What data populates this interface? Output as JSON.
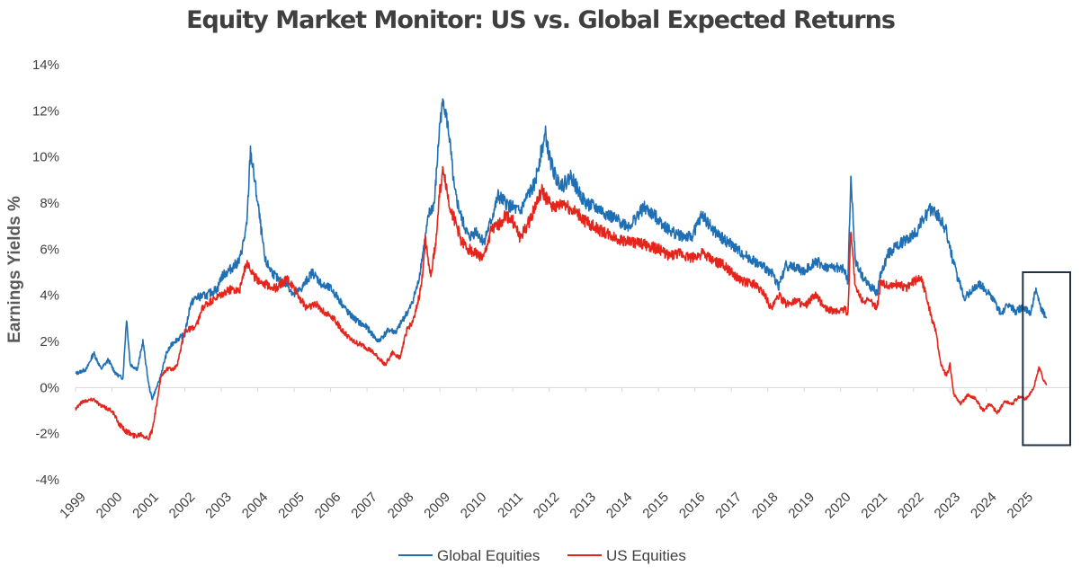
{
  "chart_data": {
    "type": "line",
    "title": "Equity Market Monitor: US vs. Global Expected Returns",
    "xlabel": "",
    "ylabel": "Earnings Yields %",
    "ylim": [
      -4,
      14
    ],
    "yticks": [
      -4,
      -2,
      0,
      2,
      4,
      6,
      8,
      10,
      12,
      14
    ],
    "ytick_labels": [
      "-4%",
      "-2%",
      "0%",
      "2%",
      "4%",
      "6%",
      "8%",
      "10%",
      "12%",
      "14%"
    ],
    "xlim": [
      1999,
      2026.3
    ],
    "xticks": [
      "1999",
      "2000",
      "2001",
      "2002",
      "2003",
      "2004",
      "2005",
      "2006",
      "2007",
      "2008",
      "2009",
      "2010",
      "2011",
      "2012",
      "2013",
      "2014",
      "2015",
      "2016",
      "2017",
      "2018",
      "2019",
      "2020",
      "2021",
      "2022",
      "2023",
      "2024",
      "2025"
    ],
    "legend_position": "bottom-center",
    "annotation": "highlight box around 2025",
    "highlight_range": {
      "x": [
        2025.0,
        2026.3
      ],
      "y": [
        -2.5,
        5.0
      ]
    },
    "series": [
      {
        "name": "Global Equities",
        "color": "#1f6fb4",
        "points": [
          [
            1999.0,
            0.6
          ],
          [
            1999.3,
            0.8
          ],
          [
            1999.5,
            1.5
          ],
          [
            1999.7,
            0.8
          ],
          [
            1999.9,
            1.2
          ],
          [
            2000.1,
            0.6
          ],
          [
            2000.3,
            0.4
          ],
          [
            2000.4,
            3.0
          ],
          [
            2000.5,
            1.0
          ],
          [
            2000.7,
            0.8
          ],
          [
            2000.85,
            2.0
          ],
          [
            2001.0,
            0.2
          ],
          [
            2001.1,
            -0.5
          ],
          [
            2001.3,
            0.3
          ],
          [
            2001.5,
            1.5
          ],
          [
            2001.7,
            2.0
          ],
          [
            2002.0,
            2.3
          ],
          [
            2002.15,
            3.6
          ],
          [
            2002.3,
            3.9
          ],
          [
            2002.6,
            4.0
          ],
          [
            2002.9,
            4.3
          ],
          [
            2003.0,
            4.8
          ],
          [
            2003.3,
            5.2
          ],
          [
            2003.5,
            5.5
          ],
          [
            2003.7,
            7.0
          ],
          [
            2003.8,
            10.3
          ],
          [
            2004.0,
            8.0
          ],
          [
            2004.2,
            5.5
          ],
          [
            2004.4,
            5.0
          ],
          [
            2004.6,
            4.6
          ],
          [
            2004.8,
            4.5
          ],
          [
            2005.0,
            4.0
          ],
          [
            2005.2,
            4.3
          ],
          [
            2005.5,
            5.0
          ],
          [
            2005.8,
            4.4
          ],
          [
            2006.0,
            4.3
          ],
          [
            2006.2,
            3.9
          ],
          [
            2006.5,
            3.2
          ],
          [
            2006.8,
            2.8
          ],
          [
            2007.0,
            2.6
          ],
          [
            2007.3,
            2.0
          ],
          [
            2007.6,
            2.5
          ],
          [
            2007.8,
            2.4
          ],
          [
            2008.0,
            3.0
          ],
          [
            2008.2,
            3.5
          ],
          [
            2008.4,
            4.5
          ],
          [
            2008.5,
            5.5
          ],
          [
            2008.7,
            7.5
          ],
          [
            2008.85,
            8.0
          ],
          [
            2009.0,
            11.5
          ],
          [
            2009.1,
            12.5
          ],
          [
            2009.25,
            11.0
          ],
          [
            2009.4,
            8.5
          ],
          [
            2009.6,
            7.3
          ],
          [
            2009.8,
            6.5
          ],
          [
            2010.0,
            6.8
          ],
          [
            2010.2,
            6.3
          ],
          [
            2010.4,
            7.2
          ],
          [
            2010.6,
            8.3
          ],
          [
            2010.8,
            8.0
          ],
          [
            2011.0,
            7.8
          ],
          [
            2011.2,
            7.6
          ],
          [
            2011.4,
            8.3
          ],
          [
            2011.6,
            8.8
          ],
          [
            2011.75,
            10.0
          ],
          [
            2011.9,
            11.0
          ],
          [
            2012.0,
            10.0
          ],
          [
            2012.2,
            9.0
          ],
          [
            2012.4,
            8.8
          ],
          [
            2012.6,
            9.2
          ],
          [
            2012.8,
            8.5
          ],
          [
            2013.0,
            8.0
          ],
          [
            2013.4,
            7.7
          ],
          [
            2013.8,
            7.3
          ],
          [
            2014.2,
            7.0
          ],
          [
            2014.6,
            7.8
          ],
          [
            2015.0,
            7.3
          ],
          [
            2015.3,
            6.8
          ],
          [
            2015.6,
            6.6
          ],
          [
            2015.9,
            6.5
          ],
          [
            2016.2,
            7.5
          ],
          [
            2016.5,
            6.8
          ],
          [
            2016.8,
            6.4
          ],
          [
            2017.0,
            6.2
          ],
          [
            2017.3,
            5.8
          ],
          [
            2017.6,
            5.5
          ],
          [
            2017.9,
            5.2
          ],
          [
            2018.1,
            5.0
          ],
          [
            2018.3,
            4.4
          ],
          [
            2018.5,
            5.3
          ],
          [
            2018.8,
            5.2
          ],
          [
            2019.0,
            5.0
          ],
          [
            2019.3,
            5.5
          ],
          [
            2019.6,
            5.2
          ],
          [
            2019.9,
            5.2
          ],
          [
            2020.1,
            5.1
          ],
          [
            2020.2,
            4.6
          ],
          [
            2020.28,
            9.2
          ],
          [
            2020.4,
            5.5
          ],
          [
            2020.6,
            4.8
          ],
          [
            2020.8,
            4.4
          ],
          [
            2021.0,
            4.1
          ],
          [
            2021.1,
            4.9
          ],
          [
            2021.3,
            5.8
          ],
          [
            2021.6,
            6.2
          ],
          [
            2021.9,
            6.5
          ],
          [
            2022.1,
            6.8
          ],
          [
            2022.3,
            7.4
          ],
          [
            2022.5,
            7.8
          ],
          [
            2022.7,
            7.4
          ],
          [
            2022.9,
            6.8
          ],
          [
            2023.0,
            6.0
          ],
          [
            2023.2,
            4.8
          ],
          [
            2023.4,
            3.9
          ],
          [
            2023.6,
            4.2
          ],
          [
            2023.8,
            4.5
          ],
          [
            2024.0,
            4.2
          ],
          [
            2024.2,
            3.8
          ],
          [
            2024.4,
            3.2
          ],
          [
            2024.6,
            3.6
          ],
          [
            2024.8,
            3.3
          ],
          [
            2025.0,
            3.5
          ],
          [
            2025.2,
            3.2
          ],
          [
            2025.35,
            4.2
          ],
          [
            2025.5,
            3.4
          ],
          [
            2025.65,
            3.0
          ]
        ]
      },
      {
        "name": "US Equities",
        "color": "#e5251b",
        "points": [
          [
            1999.0,
            -0.9
          ],
          [
            1999.2,
            -0.6
          ],
          [
            1999.5,
            -0.5
          ],
          [
            1999.7,
            -0.8
          ],
          [
            2000.0,
            -1.0
          ],
          [
            2000.2,
            -1.6
          ],
          [
            2000.4,
            -1.9
          ],
          [
            2000.6,
            -2.1
          ],
          [
            2000.8,
            -2.0
          ],
          [
            2001.0,
            -2.2
          ],
          [
            2001.1,
            -1.9
          ],
          [
            2001.2,
            -1.0
          ],
          [
            2001.35,
            0.5
          ],
          [
            2001.5,
            0.8
          ],
          [
            2001.7,
            0.8
          ],
          [
            2001.8,
            1.0
          ],
          [
            2002.0,
            2.5
          ],
          [
            2002.3,
            2.6
          ],
          [
            2002.5,
            3.5
          ],
          [
            2002.8,
            3.8
          ],
          [
            2003.0,
            4.0
          ],
          [
            2003.3,
            4.3
          ],
          [
            2003.5,
            4.2
          ],
          [
            2003.7,
            5.5
          ],
          [
            2003.9,
            4.8
          ],
          [
            2004.2,
            4.5
          ],
          [
            2004.5,
            4.3
          ],
          [
            2004.8,
            4.7
          ],
          [
            2005.0,
            4.3
          ],
          [
            2005.3,
            3.5
          ],
          [
            2005.6,
            3.6
          ],
          [
            2005.9,
            3.2
          ],
          [
            2006.1,
            3.0
          ],
          [
            2006.3,
            2.5
          ],
          [
            2006.6,
            2.0
          ],
          [
            2006.9,
            1.8
          ],
          [
            2007.1,
            1.6
          ],
          [
            2007.3,
            1.3
          ],
          [
            2007.5,
            1.0
          ],
          [
            2007.7,
            1.5
          ],
          [
            2007.9,
            1.3
          ],
          [
            2008.1,
            2.5
          ],
          [
            2008.3,
            3.0
          ],
          [
            2008.5,
            4.5
          ],
          [
            2008.6,
            6.5
          ],
          [
            2008.75,
            4.8
          ],
          [
            2008.9,
            6.5
          ],
          [
            2009.0,
            8.5
          ],
          [
            2009.1,
            9.5
          ],
          [
            2009.25,
            8.0
          ],
          [
            2009.4,
            7.3
          ],
          [
            2009.6,
            6.3
          ],
          [
            2009.8,
            6.0
          ],
          [
            2010.0,
            5.8
          ],
          [
            2010.2,
            5.6
          ],
          [
            2010.4,
            6.8
          ],
          [
            2010.6,
            7.0
          ],
          [
            2010.8,
            7.5
          ],
          [
            2011.0,
            7.2
          ],
          [
            2011.2,
            6.5
          ],
          [
            2011.4,
            7.0
          ],
          [
            2011.6,
            7.8
          ],
          [
            2011.8,
            8.5
          ],
          [
            2012.0,
            8.0
          ],
          [
            2012.2,
            7.8
          ],
          [
            2012.4,
            8.0
          ],
          [
            2012.6,
            7.7
          ],
          [
            2012.8,
            7.5
          ],
          [
            2013.0,
            7.2
          ],
          [
            2013.4,
            6.8
          ],
          [
            2013.8,
            6.5
          ],
          [
            2014.2,
            6.3
          ],
          [
            2014.6,
            6.2
          ],
          [
            2015.0,
            6.0
          ],
          [
            2015.3,
            5.7
          ],
          [
            2015.6,
            5.8
          ],
          [
            2015.9,
            5.6
          ],
          [
            2016.2,
            5.8
          ],
          [
            2016.5,
            5.5
          ],
          [
            2016.8,
            5.3
          ],
          [
            2017.0,
            5.0
          ],
          [
            2017.3,
            4.6
          ],
          [
            2017.6,
            4.5
          ],
          [
            2017.9,
            4.1
          ],
          [
            2018.1,
            3.4
          ],
          [
            2018.3,
            4.0
          ],
          [
            2018.5,
            3.6
          ],
          [
            2018.8,
            3.8
          ],
          [
            2019.0,
            3.5
          ],
          [
            2019.3,
            4.0
          ],
          [
            2019.6,
            3.4
          ],
          [
            2019.9,
            3.3
          ],
          [
            2020.1,
            3.4
          ],
          [
            2020.2,
            3.2
          ],
          [
            2020.28,
            7.0
          ],
          [
            2020.4,
            4.3
          ],
          [
            2020.6,
            3.8
          ],
          [
            2020.8,
            3.7
          ],
          [
            2021.0,
            3.5
          ],
          [
            2021.1,
            4.6
          ],
          [
            2021.3,
            4.4
          ],
          [
            2021.6,
            4.5
          ],
          [
            2021.8,
            4.3
          ],
          [
            2022.0,
            4.6
          ],
          [
            2022.2,
            4.8
          ],
          [
            2022.35,
            4.0
          ],
          [
            2022.5,
            3.0
          ],
          [
            2022.6,
            2.5
          ],
          [
            2022.75,
            1.0
          ],
          [
            2022.9,
            0.5
          ],
          [
            2023.0,
            1.0
          ],
          [
            2023.1,
            -0.3
          ],
          [
            2023.3,
            -0.7
          ],
          [
            2023.5,
            -0.3
          ],
          [
            2023.7,
            -0.5
          ],
          [
            2023.9,
            -1.0
          ],
          [
            2024.1,
            -0.7
          ],
          [
            2024.3,
            -1.1
          ],
          [
            2024.5,
            -0.6
          ],
          [
            2024.7,
            -0.7
          ],
          [
            2024.9,
            -0.4
          ],
          [
            2025.1,
            -0.5
          ],
          [
            2025.3,
            0.0
          ],
          [
            2025.45,
            0.9
          ],
          [
            2025.55,
            0.4
          ],
          [
            2025.65,
            0.1
          ]
        ]
      }
    ]
  }
}
